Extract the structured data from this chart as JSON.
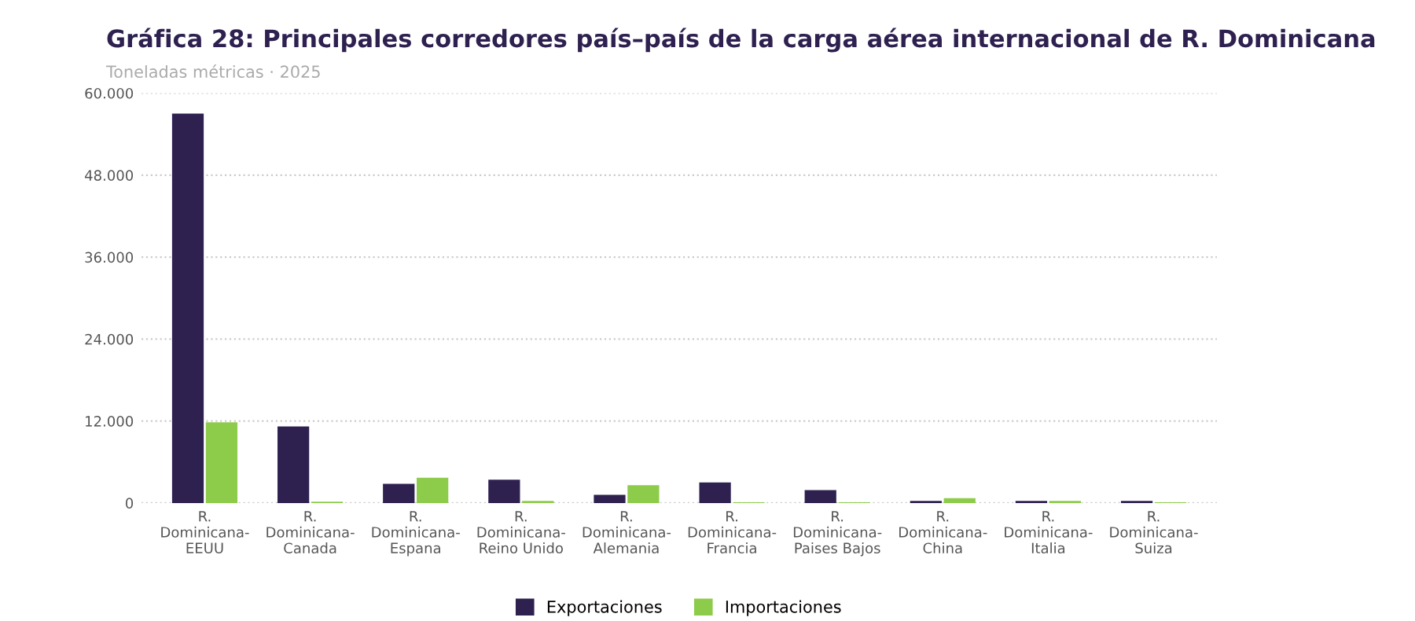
{
  "chart_data": {
    "type": "bar",
    "title": "Gráfica 28: Principales corredores país–país de la carga aérea internacional de R. Dominicana",
    "subtitle": "Toneladas métricas · 2025",
    "categories": [
      "R.\nDominicana-\nEEUU",
      "R.\nDominicana-\nCanada",
      "R.\nDominicana-\nEspana",
      "R.\nDominicana-\nReino Unido",
      "R.\nDominicana-\nAlemania",
      "R.\nDominicana-\nFrancia",
      "R.\nDominicana-\nPaises Bajos",
      "R.\nDominicana-\nChina",
      "R.\nDominicana-\nItalia",
      "R.\nDominicana-\nSuiza"
    ],
    "series": [
      {
        "name": "Exportaciones",
        "color": "#2e2150",
        "values": [
          57000,
          11200,
          2800,
          3400,
          1200,
          3000,
          1900,
          300,
          300,
          300
        ]
      },
      {
        "name": "Importaciones",
        "color": "#8dcb4a",
        "values": [
          11800,
          200,
          3700,
          300,
          2600,
          100,
          100,
          700,
          300,
          100
        ]
      }
    ],
    "ylim": [
      0,
      60000
    ],
    "yticks": [
      {
        "value": 0,
        "label": "0"
      },
      {
        "value": 12000,
        "label": "12.000"
      },
      {
        "value": 24000,
        "label": "24.000"
      },
      {
        "value": 36000,
        "label": "36.000"
      },
      {
        "value": 48000,
        "label": "48.000"
      },
      {
        "value": 60000,
        "label": "60.000"
      }
    ],
    "grid": "y",
    "legend": "bottom"
  }
}
